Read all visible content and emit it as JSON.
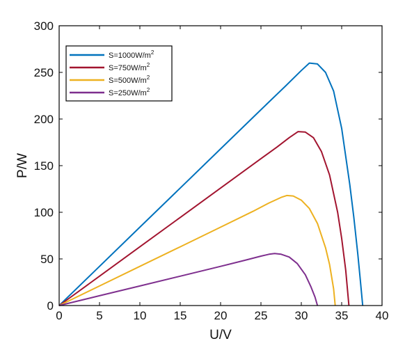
{
  "chart_data": {
    "type": "line",
    "xlabel": "U/V",
    "ylabel": "P/W",
    "xlim": [
      0,
      40
    ],
    "ylim": [
      0,
      300
    ],
    "xticks": [
      "0",
      "5",
      "10",
      "15",
      "20",
      "25",
      "30",
      "35",
      "40"
    ],
    "yticks": [
      "0",
      "50",
      "100",
      "150",
      "200",
      "250",
      "300"
    ],
    "grid": false,
    "legend_position": "top-left",
    "series": [
      {
        "name": "S=1000W/m",
        "name_superscript": "2",
        "color": "#0072BD",
        "x": [
          0,
          5,
          10,
          15,
          20,
          25,
          28,
          30,
          31,
          32,
          33,
          34,
          35,
          36,
          36.5,
          37,
          37.3,
          37.6
        ],
        "y": [
          0,
          42,
          84,
          126,
          168,
          210,
          235,
          252,
          260,
          259,
          250,
          230,
          190,
          130,
          95,
          55,
          28,
          0
        ]
      },
      {
        "name": "S=750W/m",
        "name_superscript": "2",
        "color": "#A2142F",
        "x": [
          0,
          5,
          10,
          15,
          20,
          25,
          27,
          28.5,
          29.6,
          30.5,
          31.5,
          32.5,
          33.5,
          34.5,
          35,
          35.5,
          35.9
        ],
        "y": [
          0,
          31.5,
          63,
          94.5,
          126,
          157.5,
          170,
          180,
          186.5,
          186,
          180,
          165,
          140,
          100,
          72,
          38,
          0
        ]
      },
      {
        "name": "S=500W/m",
        "name_superscript": "2",
        "color": "#EDB120",
        "x": [
          0,
          5,
          10,
          15,
          20,
          24,
          26,
          27.5,
          28.2,
          29,
          30,
          31,
          32,
          33,
          33.5,
          34,
          34.2
        ],
        "y": [
          0,
          21,
          42,
          63,
          84,
          101,
          110,
          116,
          118,
          117.5,
          113,
          104,
          88,
          62,
          44,
          18,
          0
        ]
      },
      {
        "name": "S=250W/m",
        "name_superscript": "2",
        "color": "#7E2F8E",
        "x": [
          0,
          5,
          10,
          15,
          20,
          23,
          25,
          26,
          26.7,
          27.5,
          28.5,
          29.5,
          30.5,
          31.2,
          31.7,
          32
        ],
        "y": [
          0,
          10.5,
          21,
          31.5,
          42,
          48.5,
          53,
          55,
          55.8,
          55,
          52,
          45,
          33,
          20,
          9,
          0
        ]
      }
    ]
  }
}
